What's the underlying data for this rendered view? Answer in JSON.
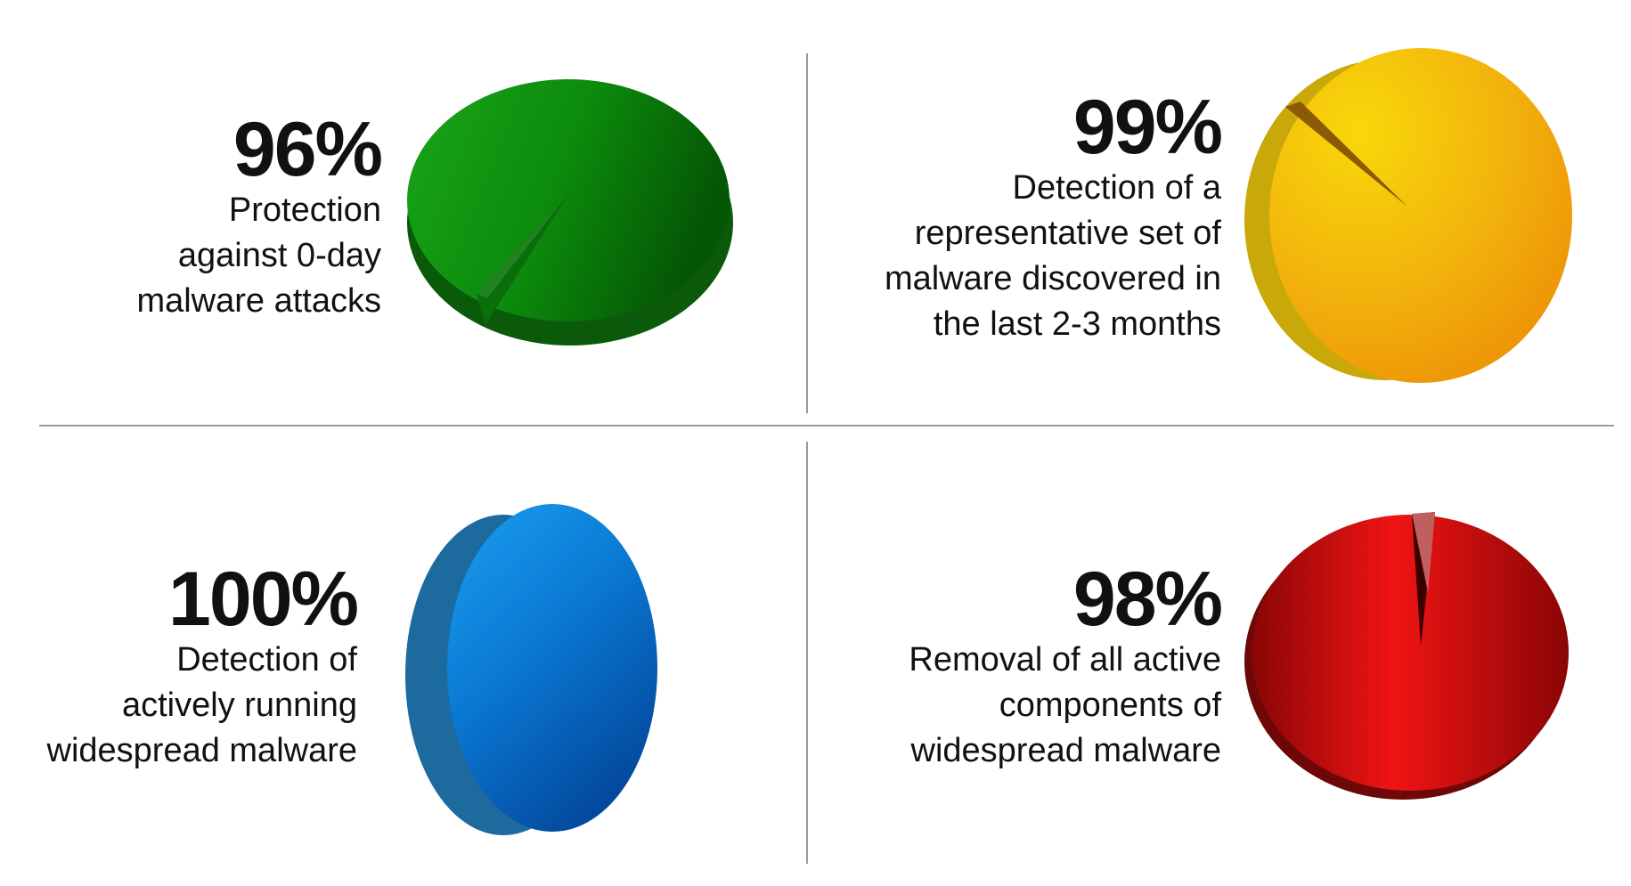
{
  "chart_data": [
    {
      "type": "pie",
      "title": "96%",
      "description": "Protection\nagainst 0-day\nmalware attacks",
      "values": [
        96,
        4
      ],
      "colors": {
        "light": "#1aa51a",
        "mid": "#0a8a0a",
        "dark": "#055705",
        "side": "#0b5a0b"
      }
    },
    {
      "type": "pie",
      "title": "99%",
      "description": "Detection of a\nrepresentative set of\nmalware discovered in\nthe last 2-3 months",
      "values": [
        99,
        1
      ],
      "colors": {
        "light": "#f6d20a",
        "mid": "#f2b20c",
        "dark": "#ec9605",
        "side": "#c9a80a"
      }
    },
    {
      "type": "pie",
      "title": "100%",
      "description": "Detection of\nactively running\nwidespread malware",
      "values": [
        100
      ],
      "colors": {
        "light": "#1a9ef0",
        "mid": "#0a7fd8",
        "dark": "#0450a8",
        "side": "#1d6a9e"
      }
    },
    {
      "type": "pie",
      "title": "98%",
      "description": "Removal of all active\ncomponents of\nwidespread malware",
      "values": [
        98,
        2
      ],
      "colors": {
        "light": "#ff1e1e",
        "mid": "#d00a0a",
        "dark": "#8a0505",
        "side": "#7a0a0a"
      }
    }
  ]
}
